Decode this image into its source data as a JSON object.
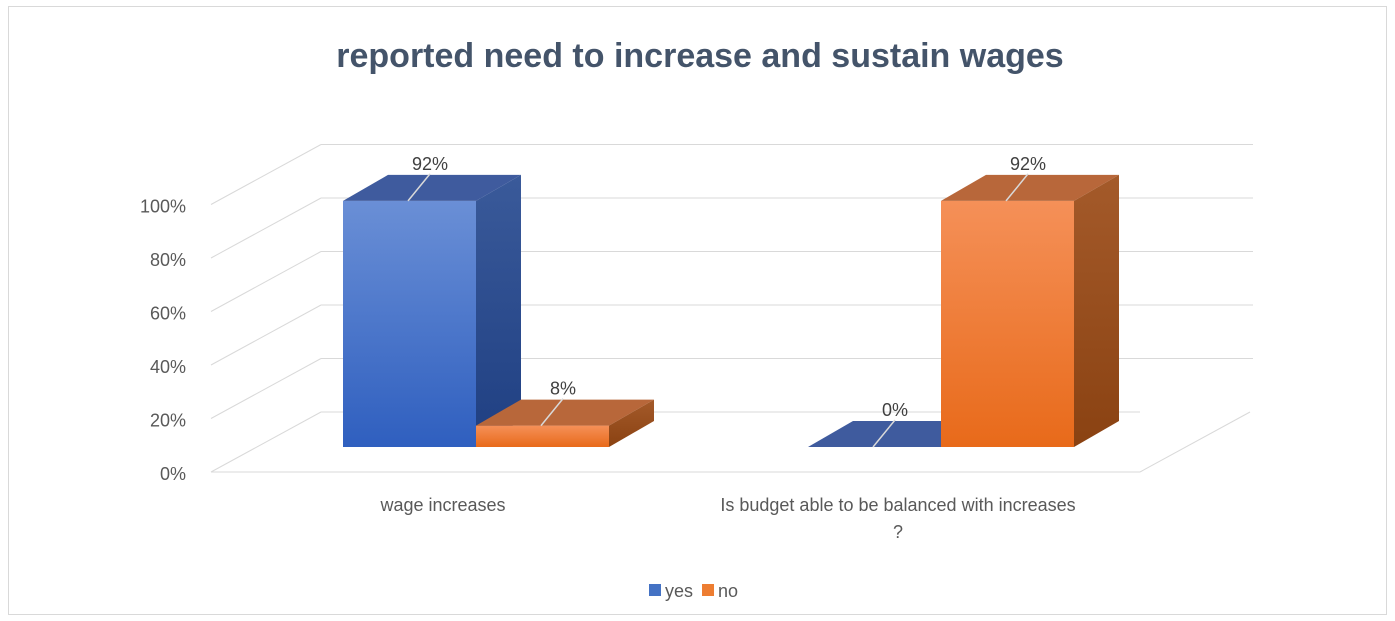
{
  "chart_data": {
    "type": "bar",
    "title": "reported need to increase and sustain wages",
    "categories": [
      [
        "wage increases"
      ],
      [
        "Is budget able to be balanced with increases",
        "?"
      ]
    ],
    "series": [
      {
        "name": "yes",
        "values": [
          0.92,
          0.0
        ],
        "labels": [
          "92%",
          "0%"
        ],
        "color": "#4472c4"
      },
      {
        "name": "no",
        "values": [
          0.08,
          0.92
        ],
        "labels": [
          "8%",
          "92%"
        ],
        "color": "#ed7d31"
      }
    ],
    "ylim": [
      0,
      1
    ],
    "yticks": [
      "0%",
      "20%",
      "40%",
      "60%",
      "80%",
      "100%"
    ],
    "grid": true,
    "legend": "bottom",
    "style": "3d-clustered-column"
  }
}
